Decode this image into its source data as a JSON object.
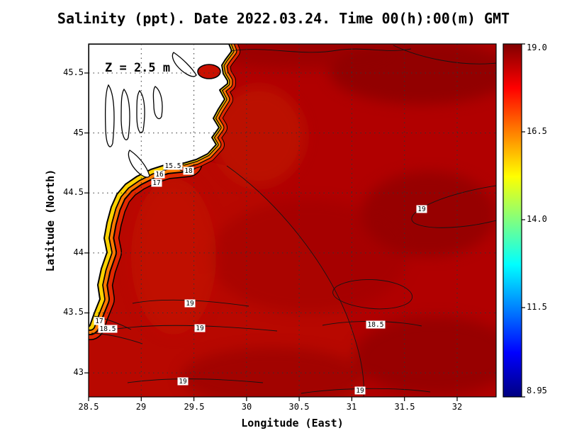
{
  "title": "Salinity (ppt). Date 2022.03.24. Time 00(h):00(m) GMT",
  "chart_data": {
    "type": "heatmap",
    "subtype": "filled-contour-map",
    "title": "Salinity (ppt). Date 2022.03.24. Time 00(h):00(m) GMT",
    "variable": "Salinity",
    "units": "ppt",
    "date": "2022.03.24",
    "time": "00(h):00(m) GMT",
    "depth_annotation": "Z = 2.5 m",
    "xlabel": "Longitude (East)",
    "ylabel": "Latitude (North)",
    "x_ticks": [
      "28.5",
      "29",
      "29.5",
      "30",
      "30.5",
      "31",
      "31.5",
      "32"
    ],
    "y_ticks": [
      "45.5",
      "45",
      "44.5",
      "44",
      "43.5",
      "43"
    ],
    "xlim": [
      28.5,
      32.37
    ],
    "ylim": [
      42.8,
      45.74
    ],
    "grid": true,
    "colorbar": {
      "min": 8.95,
      "max": 19.0,
      "tick_labels": [
        "19.0",
        "16.5",
        "14.0",
        "11.5",
        "8.95"
      ],
      "colormap": "jet",
      "gradient_stops": [
        {
          "offset": "0%",
          "color": "#800000"
        },
        {
          "offset": "12.5%",
          "color": "#ff0000"
        },
        {
          "offset": "25%",
          "color": "#ff8000"
        },
        {
          "offset": "37.5%",
          "color": "#ffff00"
        },
        {
          "offset": "50%",
          "color": "#80ff80"
        },
        {
          "offset": "62.5%",
          "color": "#00ffff"
        },
        {
          "offset": "75%",
          "color": "#0080ff"
        },
        {
          "offset": "87.5%",
          "color": "#0000ff"
        },
        {
          "offset": "100%",
          "color": "#000080"
        }
      ]
    },
    "contour_labels": [
      {
        "text": "15.5",
        "value": 15.5,
        "lon": 29.3,
        "lat": 44.72
      },
      {
        "text": "16",
        "value": 16.0,
        "lon": 29.17,
        "lat": 44.65
      },
      {
        "text": "17",
        "value": 17.0,
        "lon": 29.15,
        "lat": 44.58
      },
      {
        "text": "18",
        "value": 18.0,
        "lon": 29.45,
        "lat": 44.68
      },
      {
        "text": "19",
        "value": 19.0,
        "lon": 31.66,
        "lat": 44.36
      },
      {
        "text": "17",
        "value": 17.0,
        "lon": 28.6,
        "lat": 43.43
      },
      {
        "text": "18.5",
        "value": 18.5,
        "lon": 28.68,
        "lat": 43.37
      },
      {
        "text": "19",
        "value": 19.0,
        "lon": 29.46,
        "lat": 43.58
      },
      {
        "text": "19",
        "value": 19.0,
        "lon": 29.56,
        "lat": 43.37
      },
      {
        "text": "18.5",
        "value": 18.5,
        "lon": 31.23,
        "lat": 43.4
      },
      {
        "text": "19",
        "value": 19.0,
        "lon": 29.4,
        "lat": 42.93
      },
      {
        "text": "19",
        "value": 19.0,
        "lon": 31.08,
        "lat": 42.85
      }
    ],
    "colors": {
      "open_sea": "#b10000",
      "coastal_band_red": "#e02800",
      "coastal_band_orange": "#ff7a00",
      "coastal_band_yellow": "#ffd200",
      "land": "#ffffff",
      "coastline": "#000000"
    }
  }
}
